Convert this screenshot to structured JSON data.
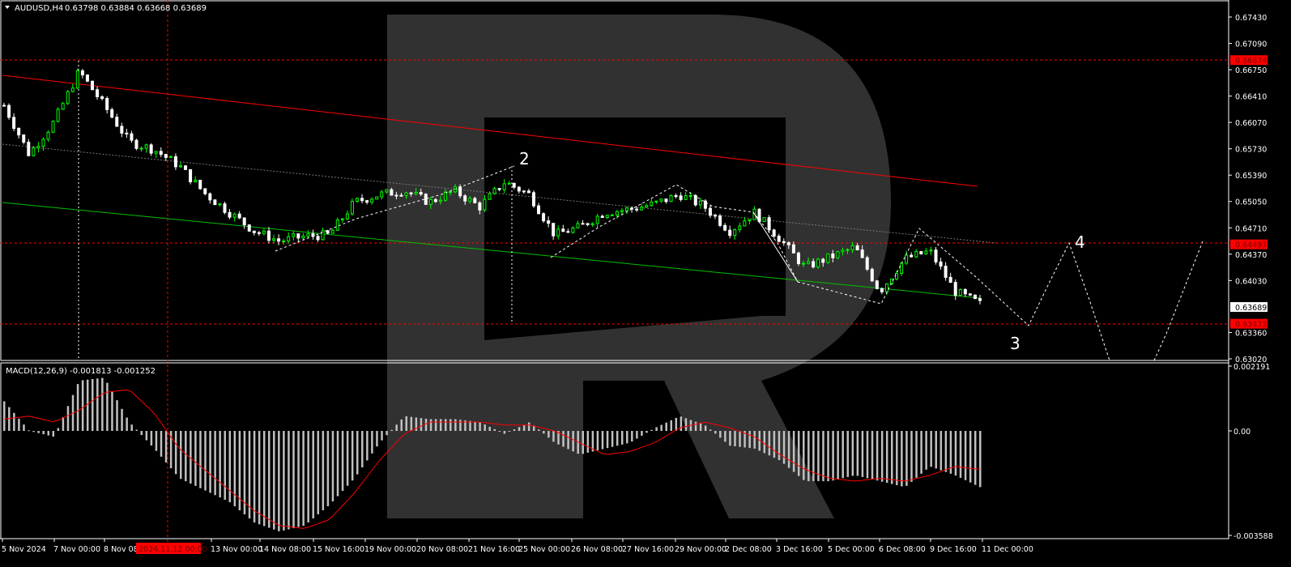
{
  "header": {
    "symbol_timeframe": "AUDUSD,H4",
    "ohlc": "0.63798 0.63884 0.63668 0.63689",
    "menu_icon": "triangle-down-icon"
  },
  "price_axis": {
    "ticks": [
      "0.67430",
      "0.67090",
      "0.66750",
      "0.66410",
      "0.66070",
      "0.65730",
      "0.65390",
      "0.65050",
      "0.64710",
      "0.64370",
      "0.64030",
      "0.63360",
      "0.63020"
    ],
    "levels": [
      {
        "label": "0.66874",
        "color": "#ff0000"
      },
      {
        "label": "0.64497",
        "color": "#ff0000"
      },
      {
        "label": "0.63473",
        "color": "#ff0000"
      }
    ],
    "current_price": "0.63689"
  },
  "macd": {
    "title": "MACD(12,26,9) -0.001813 -0.001252",
    "axis_ticks": [
      "0.002191",
      "0.00",
      "-0.003588"
    ]
  },
  "time_axis": {
    "labels": [
      "5 Nov 2024",
      "7 Nov 00:00",
      "8 Nov 08:",
      "13 Nov 00:00",
      "14 Nov 08:00",
      "15 Nov 16:00",
      "19 Nov 00:00",
      "20 Nov 08:00",
      "21 Nov 16:00",
      "25 Nov 00:00",
      "26 Nov 08:00",
      "27 Nov 16:00",
      "29 Nov 00:00",
      "2 Dec 08:00",
      "3 Dec 16:00",
      "5 Dec 00:00",
      "6 Dec 08:00",
      "9 Dec 16:00",
      "11 Dec 00:00"
    ],
    "crosshair_label": "2024.11.12 00:00"
  },
  "wave_labels": [
    "2",
    "3",
    "4"
  ],
  "colors": {
    "bull": "#00ff00",
    "bear": "#ffffff",
    "channel_upper": "#ff0000",
    "channel_lower": "#00c000",
    "macd_hist": "#c0c0c0",
    "macd_signal": "#ff0000",
    "level": "#ff0000"
  },
  "chart_data": {
    "type": "candlestick",
    "ylim": [
      0.6302,
      0.6743
    ],
    "close_path": [
      0.6629,
      0.6566,
      0.6608,
      0.6673,
      0.6629,
      0.6582,
      0.6572,
      0.6551,
      0.6516,
      0.6491,
      0.6467,
      0.6454,
      0.646,
      0.6462,
      0.6504,
      0.6514,
      0.6519,
      0.6504,
      0.6519,
      0.6498,
      0.653,
      0.6514,
      0.6462,
      0.6472,
      0.6491,
      0.6495,
      0.6502,
      0.6514,
      0.6498,
      0.6467,
      0.6491,
      0.6457,
      0.642,
      0.6433,
      0.6446,
      0.6389,
      0.6431,
      0.6441,
      0.6389,
      0.6373
    ],
    "macd_ylim": [
      -0.003588,
      0.002191
    ],
    "macd_histogram": [
      0.001,
      0.0,
      -0.0002,
      0.0017,
      0.0018,
      0.0003,
      -0.0006,
      -0.0016,
      -0.002,
      -0.0024,
      -0.0031,
      -0.0034,
      -0.0032,
      -0.0025,
      -0.0016,
      -0.0004,
      0.0005,
      0.0004,
      0.0004,
      0.0003,
      -0.0001,
      0.0003,
      -0.0004,
      -0.0008,
      -0.0006,
      -0.0004,
      0.0001,
      0.0005,
      0.0002,
      -0.0005,
      -0.0006,
      -0.001,
      -0.0017,
      -0.0017,
      -0.0015,
      -0.0017,
      -0.0019,
      -0.0012,
      -0.0015,
      -0.0019
    ],
    "macd_signal": [
      0.0004,
      0.0005,
      0.0003,
      0.0007,
      0.0013,
      0.0014,
      0.0006,
      -0.0006,
      -0.0013,
      -0.002,
      -0.0027,
      -0.0032,
      -0.0033,
      -0.003,
      -0.0021,
      -0.001,
      -0.0001,
      0.0003,
      0.0003,
      0.0003,
      0.0002,
      0.0002,
      0.0,
      -0.0004,
      -0.0008,
      -0.0007,
      -0.0004,
      0.0001,
      0.0003,
      0.0001,
      -0.0002,
      -0.0008,
      -0.0013,
      -0.0016,
      -0.0017,
      -0.0016,
      -0.0017,
      -0.0015,
      -0.0012,
      -0.0013
    ]
  }
}
